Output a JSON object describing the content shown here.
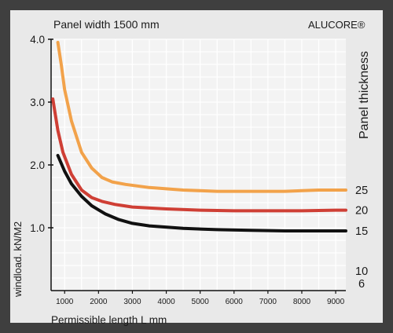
{
  "chart_data": {
    "type": "line",
    "title": "Panel width 1500 mm",
    "brand": "ALUCORE®",
    "xlabel": "Permissible length L mm",
    "ylabel": "windload. kN/M2",
    "legend_title": "Panel thickness",
    "legend_placement": "right",
    "grid": true,
    "xlim": [
      600,
      9300
    ],
    "ylim": [
      0,
      4.0
    ],
    "x_ticks": [
      "1000",
      "2000",
      "3000",
      "4000",
      "5000",
      "6000",
      "7000",
      "8000",
      "9000"
    ],
    "y_ticks": [
      "1.0",
      "2.0",
      "3.0",
      "4.0"
    ],
    "extra_labels": [
      "10",
      "6"
    ],
    "series": [
      {
        "name": "25",
        "color": "#f2a24a",
        "x": [
          800,
          900,
          1000,
          1200,
          1500,
          1800,
          2100,
          2400,
          2800,
          3500,
          4500,
          5500,
          6500,
          7500,
          8500,
          9300
        ],
        "y": [
          3.95,
          3.6,
          3.2,
          2.7,
          2.2,
          1.95,
          1.8,
          1.73,
          1.69,
          1.64,
          1.6,
          1.58,
          1.58,
          1.58,
          1.6,
          1.6
        ]
      },
      {
        "name": "20",
        "color": "#cf3f35",
        "x": [
          650,
          800,
          950,
          1200,
          1500,
          1800,
          2100,
          2500,
          3000,
          4000,
          5000,
          6000,
          7000,
          8000,
          9000,
          9300
        ],
        "y": [
          3.05,
          2.55,
          2.2,
          1.85,
          1.6,
          1.48,
          1.42,
          1.37,
          1.33,
          1.3,
          1.28,
          1.27,
          1.27,
          1.27,
          1.28,
          1.28
        ]
      },
      {
        "name": "15",
        "color": "#111111",
        "x": [
          800,
          1000,
          1200,
          1500,
          1800,
          2200,
          2600,
          3000,
          3500,
          4500,
          5500,
          6500,
          7500,
          8500,
          9300
        ],
        "y": [
          2.15,
          1.9,
          1.7,
          1.5,
          1.35,
          1.22,
          1.13,
          1.07,
          1.03,
          0.99,
          0.97,
          0.96,
          0.95,
          0.95,
          0.95
        ]
      }
    ]
  }
}
